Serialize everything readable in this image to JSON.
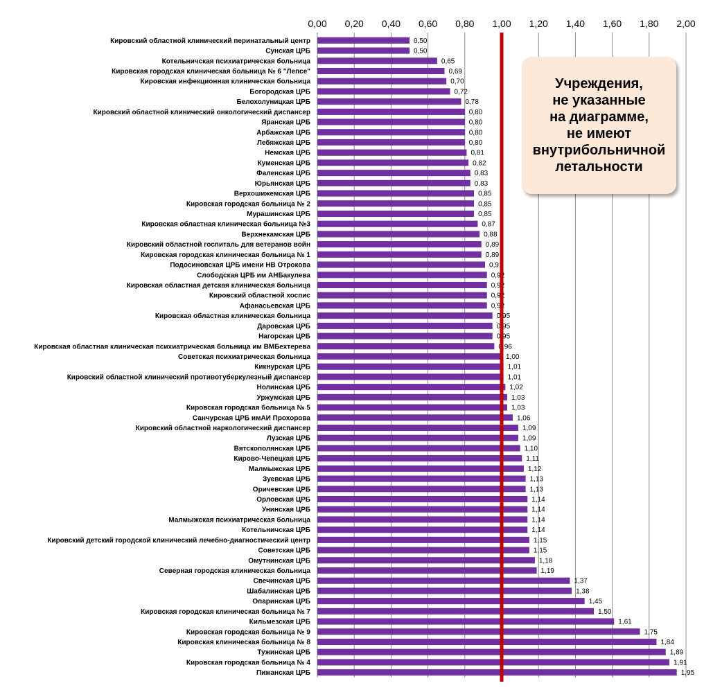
{
  "chart_data": {
    "type": "bar",
    "orientation": "horizontal",
    "title": "",
    "xlabel": "",
    "ylabel": "",
    "xlim": [
      0,
      2
    ],
    "x_ticks": [
      "0,00",
      "0,20",
      "0,40",
      "0,60",
      "0,80",
      "1,00",
      "1,20",
      "1,40",
      "1,60",
      "1,80",
      "2,00"
    ],
    "reference_line": 1.0,
    "bar_color": "#7030a0",
    "reference_color": "#c00000",
    "categories": [
      "Кировский областной  клинический перинатальный центр",
      "Сунская ЦРБ",
      "Котельничская психиатрическая больница",
      "Кировская городская клиническая больница № 6 \"Лепсе\"",
      "Кировская инфекционная клиническая больница",
      "Богородская ЦРБ",
      "Белохолуницкая ЦРБ",
      "Кировский областной клинический онкологический диспансер",
      "Яранская ЦРБ",
      "Арбажская ЦРБ",
      "Лебяжская ЦРБ",
      "Немская ЦРБ",
      "Куменская ЦРБ",
      "Фаленская ЦРБ",
      "Юрьянская ЦРБ",
      "Верхошижемская ЦРБ",
      "Кировская городская больница № 2",
      "Мурашинская ЦРБ",
      "Кировская областная клиническая больница №3",
      "Верхнекамская ЦРБ",
      "Кировский областной госпиталь для ветеранов войн",
      "Кировская городская клиническая больница № 1",
      "Подосиновская ЦРБ имени НВ Отрокова",
      "Слободская ЦРБ им АНБакулева",
      "Кировская областная детская клиническая больница",
      "Кировский областной хоспис",
      "Афанасьевская ЦРБ",
      "Кировская областная клиническая больница",
      "Даровская ЦРБ",
      "Нагорская ЦРБ",
      "Кировская областная клиническая психиатрическая больница им ВМБехтерева",
      "Советская психиатрическая больница",
      "Кикнурская ЦРБ",
      "Кировский областной клинический противотуберкулезный диспансер",
      "Нолинская ЦРБ",
      "Уржумская ЦРБ",
      "Кировская городская больница № 5",
      "Санчурская ЦРБ имАИ Прохорова",
      "Кировский областной наркологический диспансер",
      "Лузская ЦРБ",
      "Вятскополянская ЦРБ",
      "Кирово-Чепецкая ЦРБ",
      "Малмыжская ЦРБ",
      "Зуевская ЦРБ",
      "Оричевская ЦРБ",
      "Орловская ЦРБ",
      "Унинская ЦРБ",
      "Малмыжская психиатрическая больница",
      "Котельничская ЦРБ",
      "Кировский детский городской клинический лечебно-диагностический центр",
      "Советская ЦРБ",
      "Омутнинская ЦРБ",
      "Северная городская клиническая больница",
      "Свечинская ЦРБ",
      "Шабалинская ЦРБ",
      "Опаринская ЦРБ",
      "Кировская городская клиническая больница № 7",
      "Кильмезская ЦРБ",
      "Кировская городская больница № 9",
      "Кировская клиническая больница № 8",
      "Тужинская ЦРБ",
      "Кировская городская больница № 4",
      "Пижанская ЦРБ"
    ],
    "values": [
      0.5,
      0.5,
      0.65,
      0.69,
      0.7,
      0.72,
      0.78,
      0.8,
      0.8,
      0.8,
      0.8,
      0.81,
      0.82,
      0.83,
      0.83,
      0.85,
      0.85,
      0.85,
      0.87,
      0.88,
      0.89,
      0.89,
      0.91,
      0.92,
      0.92,
      0.92,
      0.92,
      0.95,
      0.95,
      0.95,
      0.96,
      1.0,
      1.01,
      1.01,
      1.02,
      1.03,
      1.03,
      1.06,
      1.09,
      1.09,
      1.1,
      1.11,
      1.12,
      1.13,
      1.13,
      1.14,
      1.14,
      1.14,
      1.14,
      1.15,
      1.15,
      1.18,
      1.19,
      1.37,
      1.38,
      1.45,
      1.5,
      1.61,
      1.75,
      1.84,
      1.89,
      1.91,
      1.95
    ],
    "value_labels": [
      "0,50",
      "0,50",
      "0,65",
      "0,69",
      "0,70",
      "0,72",
      "0,78",
      "0,80",
      "0,80",
      "0,80",
      "0,80",
      "0,81",
      "0,82",
      "0,83",
      "0,83",
      "0,85",
      "0,85",
      "0,85",
      "0,87",
      "0,88",
      "0,89",
      "0,89",
      "0,91",
      "0,92",
      "0,92",
      "0,92",
      "0,92",
      "0,95",
      "0,95",
      "0,95",
      "0,96",
      "1,00",
      "1,01",
      "1,01",
      "1,02",
      "1,03",
      "1,03",
      "1,06",
      "1,09",
      "1,09",
      "1,10",
      "1,11",
      "1,12",
      "1,13",
      "1,13",
      "1,14",
      "1,14",
      "1,14",
      "1,14",
      "1,15",
      "1,15",
      "1,18",
      "1,19",
      "1,37",
      "1,38",
      "1,45",
      "1,50",
      "1,61",
      "1,75",
      "1,84",
      "1,89",
      "1,91",
      "1,95"
    ],
    "annotation": "Учреждения,\nне указанные\nна диаграмме,\nне имеют\nвнутрибольничной\nлетальности"
  }
}
